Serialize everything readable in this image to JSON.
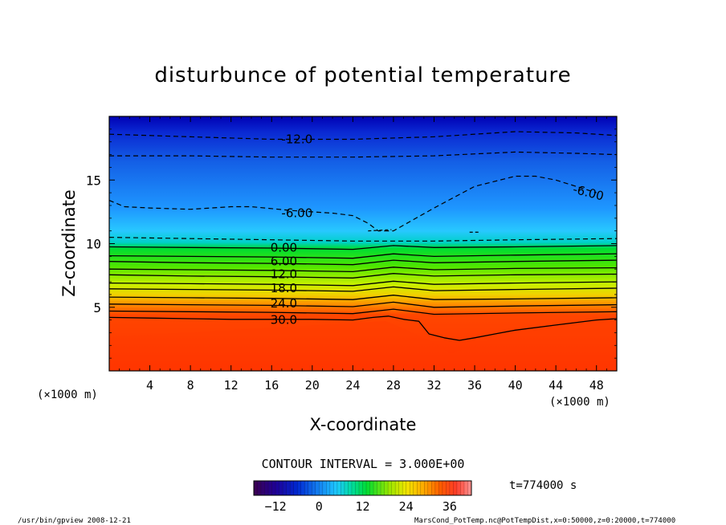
{
  "chart_data": {
    "type": "heatmap",
    "title": "disturbunce of potential temperature",
    "xlabel": "X-coordinate",
    "ylabel": "Z-coordinate",
    "x_unit": "(×1000 m)",
    "z_unit": "(×1000 m)",
    "xlim": [
      0,
      50
    ],
    "ylim": [
      0,
      20
    ],
    "x_ticks": [
      4,
      8,
      12,
      16,
      20,
      24,
      28,
      32,
      36,
      40,
      44,
      48
    ],
    "y_ticks": [
      5,
      10,
      15
    ],
    "contour_interval_text": "CONTOUR INTERVAL = 3.000E+00",
    "contour_labels": [
      {
        "text": "-12.0",
        "x": 18.5,
        "z": 18.2
      },
      {
        "text": "-6.00",
        "x": 18.5,
        "z": 12.4
      },
      {
        "text": "-6.00",
        "x": 47.2,
        "z": 14.0
      },
      {
        "text": "0.00",
        "x": 17.2,
        "z": 9.7
      },
      {
        "text": "6.00",
        "x": 17.2,
        "z": 8.6
      },
      {
        "text": "12.0",
        "x": 17.2,
        "z": 7.6
      },
      {
        "text": "18.0",
        "x": 17.2,
        "z": 6.5
      },
      {
        "text": "24.0",
        "x": 17.2,
        "z": 5.3
      },
      {
        "text": "30.0",
        "x": 17.2,
        "z": 4.0
      }
    ],
    "series": [
      {
        "name": "-12",
        "style": "dashed",
        "x": [
          0,
          8,
          16,
          24,
          32,
          40,
          46,
          50
        ],
        "z": [
          18.6,
          18.4,
          18.2,
          18.2,
          18.4,
          18.8,
          18.7,
          18.5
        ]
      },
      {
        "name": "-9",
        "style": "dashed",
        "x": [
          0,
          8,
          16,
          24,
          32,
          40,
          46,
          50
        ],
        "z": [
          16.9,
          16.9,
          16.8,
          16.8,
          16.9,
          17.2,
          17.1,
          17.0
        ]
      },
      {
        "name": "-6",
        "style": "dashed",
        "x": [
          0,
          1.5,
          4,
          8,
          12,
          14,
          18,
          20,
          22,
          24,
          25.5,
          26.5,
          28,
          32,
          36,
          40,
          42,
          44,
          46,
          48
        ],
        "z": [
          13.4,
          12.9,
          12.8,
          12.7,
          12.9,
          12.9,
          12.6,
          12.5,
          12.4,
          12.2,
          11.6,
          11.0,
          11.0,
          12.8,
          14.5,
          15.3,
          15.3,
          15.0,
          14.5,
          14.0
        ]
      },
      {
        "name": "-3",
        "style": "dashed",
        "x": [
          0,
          8,
          16,
          24,
          32,
          40,
          50
        ],
        "z": [
          10.5,
          10.4,
          10.3,
          10.2,
          10.2,
          10.3,
          10.4
        ]
      },
      {
        "name": "0",
        "style": "solid",
        "x": [
          0,
          8,
          16,
          24,
          28,
          32,
          40,
          50
        ],
        "z": [
          9.75,
          9.7,
          9.65,
          9.55,
          9.85,
          9.7,
          9.75,
          9.85
        ]
      },
      {
        "name": "3",
        "style": "solid",
        "x": [
          0,
          8,
          16,
          24,
          28,
          32,
          40,
          50
        ],
        "z": [
          9.05,
          9.0,
          8.95,
          8.85,
          9.2,
          9.0,
          9.1,
          9.2
        ]
      },
      {
        "name": "6",
        "style": "solid",
        "x": [
          0,
          8,
          16,
          24,
          28,
          32,
          40,
          50
        ],
        "z": [
          8.6,
          8.5,
          8.45,
          8.35,
          8.7,
          8.5,
          8.6,
          8.7
        ]
      },
      {
        "name": "9",
        "style": "solid",
        "x": [
          0,
          8,
          16,
          24,
          28,
          32,
          40,
          50
        ],
        "z": [
          8.0,
          7.95,
          7.9,
          7.8,
          8.15,
          7.95,
          8.05,
          8.1
        ]
      },
      {
        "name": "12",
        "style": "solid",
        "x": [
          0,
          8,
          16,
          24,
          28,
          32,
          40,
          50
        ],
        "z": [
          7.55,
          7.45,
          7.4,
          7.3,
          7.65,
          7.45,
          7.55,
          7.6
        ]
      },
      {
        "name": "15",
        "style": "solid",
        "x": [
          0,
          8,
          16,
          24,
          28,
          32,
          40,
          50
        ],
        "z": [
          6.9,
          6.85,
          6.8,
          6.7,
          7.05,
          6.8,
          6.9,
          7.0
        ]
      },
      {
        "name": "18",
        "style": "solid",
        "x": [
          0,
          8,
          16,
          24,
          28,
          32,
          40,
          50
        ],
        "z": [
          6.45,
          6.4,
          6.35,
          6.25,
          6.6,
          6.3,
          6.4,
          6.5
        ]
      },
      {
        "name": "21",
        "style": "solid",
        "x": [
          0,
          8,
          16,
          24,
          28,
          32,
          40,
          50
        ],
        "z": [
          5.8,
          5.75,
          5.7,
          5.6,
          5.95,
          5.6,
          5.65,
          5.75
        ]
      },
      {
        "name": "24",
        "style": "solid",
        "x": [
          0,
          8,
          16,
          24,
          28,
          32,
          40,
          50
        ],
        "z": [
          5.25,
          5.2,
          5.15,
          5.05,
          5.4,
          5.0,
          5.1,
          5.2
        ]
      },
      {
        "name": "27",
        "style": "solid",
        "x": [
          0,
          8,
          16,
          24,
          28,
          32,
          40,
          50
        ],
        "z": [
          4.7,
          4.65,
          4.6,
          4.5,
          4.85,
          4.45,
          4.55,
          4.65
        ]
      },
      {
        "name": "30",
        "style": "solid",
        "x": [
          0,
          4,
          8,
          12,
          16,
          20,
          24,
          26,
          27.5,
          29,
          30.5,
          31.5,
          33,
          34.5,
          36,
          38,
          40,
          44,
          48,
          50
        ],
        "z": [
          4.2,
          4.15,
          4.1,
          4.05,
          4.05,
          4.05,
          4.0,
          4.2,
          4.3,
          4.05,
          3.9,
          2.9,
          2.6,
          2.4,
          2.6,
          2.9,
          3.2,
          3.6,
          4.0,
          4.1
        ]
      }
    ],
    "colorbar": {
      "ticks": [
        -12,
        0,
        12,
        24,
        36
      ],
      "range": [
        -18,
        42
      ]
    },
    "colors": {
      "top": "#0000a8",
      "blue": "#1466e6",
      "cyan": "#1ec8ff",
      "green": "#00dc32",
      "yellow": "#f0f000",
      "orange": "#ff8c00",
      "red": "#ff3200"
    }
  },
  "time_label": "t=774000 s",
  "footer_left": "/usr/bin/gpview  2008-12-21",
  "footer_right": "MarsCond_PotTemp.nc@PotTempDist,x=0:50000,z=0:20000,t=774000"
}
